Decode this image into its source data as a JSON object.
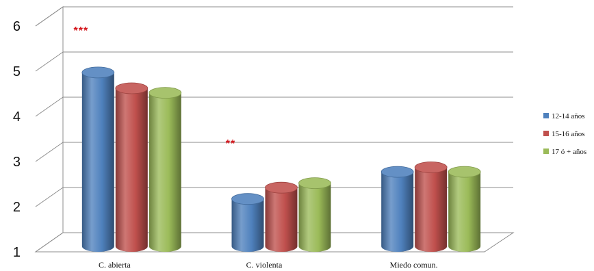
{
  "chart_data": {
    "type": "bar",
    "style": "3d-cylinder",
    "categories": [
      "C. abierta",
      "C. violenta",
      "Miedo comun."
    ],
    "series": [
      {
        "name": "12-14 años",
        "values": [
          4.85,
          2.05,
          2.65
        ],
        "color": "#4f81bd"
      },
      {
        "name": "15-16 años",
        "values": [
          4.5,
          2.3,
          2.75
        ],
        "color": "#c0504d"
      },
      {
        "name": "17 ó + años",
        "values": [
          4.4,
          2.4,
          2.65
        ],
        "color": "#9bbb59"
      }
    ],
    "y_ticks": [
      "1",
      "2",
      "3",
      "4",
      "5",
      "6"
    ],
    "ylim": [
      1,
      6
    ],
    "grid": true,
    "legend_position": "right",
    "annotations": [
      {
        "text": "***",
        "category_index": 0,
        "y": 5.8
      },
      {
        "text": "**",
        "category_index": 1,
        "y": 3.3
      }
    ]
  }
}
